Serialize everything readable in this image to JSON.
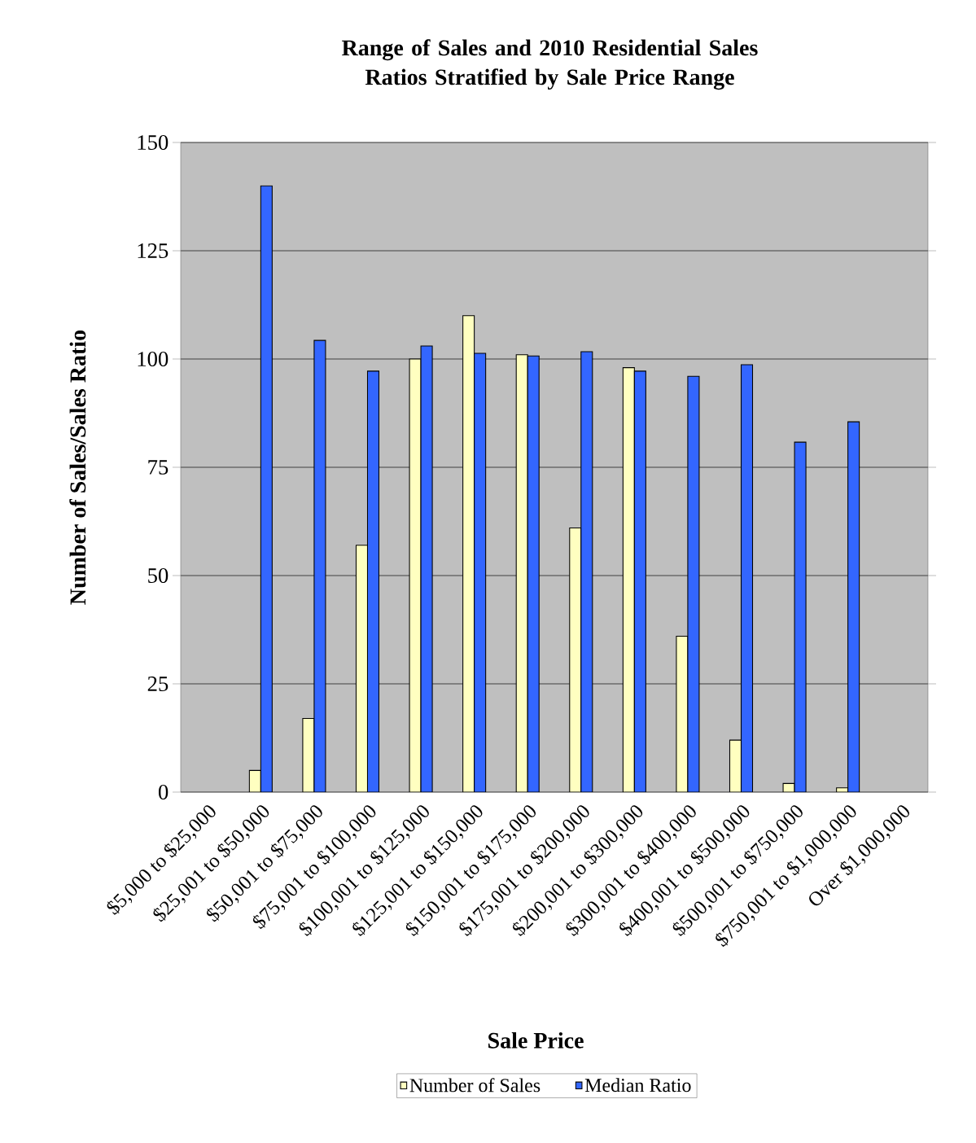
{
  "chart_data": {
    "type": "bar",
    "title": "Range of Sales and 2010 Residential Sales Ratios Stratified by Sale Price Range",
    "xlabel": "Sale Price",
    "ylabel": "Number of Sales/Sales Ratio",
    "categories": [
      "$5,000 to $25,000",
      "$25,001 to $50,000",
      "$50,001 to $75,000",
      "$75,001 to $100,000",
      "$100,001 to $125,000",
      "$125,001 to $150,000",
      "$150,001 to $175,000",
      "$175,001 to $200,000",
      "$200,001 to $300,000",
      "$300,001 to $400,000",
      "$400,001 to $500,000",
      "$500,001 to $750,000",
      "$750,001 to $1,000,000",
      "Over $1,000,000"
    ],
    "series": [
      {
        "name": "Number of Sales",
        "color": "#ffffc0",
        "values": [
          null,
          5,
          17,
          57,
          100,
          110,
          101,
          61,
          98,
          36,
          12,
          2,
          1,
          null
        ]
      },
      {
        "name": "Median Ratio",
        "color": "#3366ff",
        "values": [
          null,
          140,
          104.3,
          97.2,
          103,
          101.3,
          100.7,
          101.7,
          97.2,
          96,
          98.7,
          80.8,
          85.5,
          null
        ]
      }
    ],
    "ylim": [
      0,
      150
    ],
    "yticks": [
      0,
      25,
      50,
      75,
      100,
      125,
      150
    ],
    "grid": "y",
    "legend": "bottom"
  }
}
